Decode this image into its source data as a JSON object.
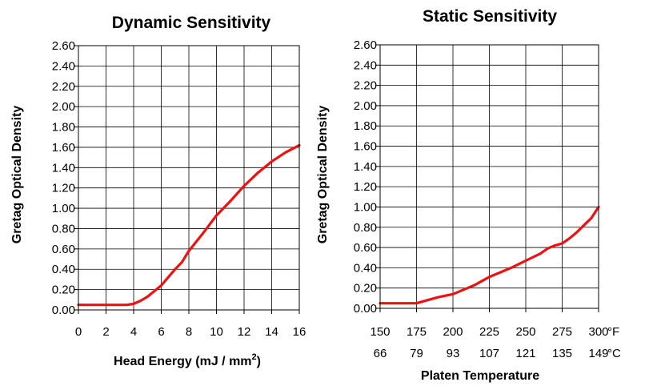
{
  "chart_data": [
    {
      "type": "line",
      "title": "Dynamic Sensitivity",
      "xlabel_main": "Head Energy (mJ / mm",
      "xlabel_sup": "2",
      "xlabel_end": ")",
      "ylabel": "Gretag Optical Density",
      "xlim": [
        0,
        16
      ],
      "ylim": [
        0,
        2.6
      ],
      "grid": true,
      "x_ticks": [
        "0",
        "2",
        "4",
        "6",
        "8",
        "10",
        "12",
        "14",
        "16"
      ],
      "y_ticks": [
        "0.00",
        "0.20",
        "0.40",
        "0.60",
        "0.80",
        "1.00",
        "1.20",
        "1.40",
        "1.60",
        "1.80",
        "2.00",
        "2.20",
        "2.40",
        "2.60"
      ],
      "color": "#ee1111",
      "series": [
        {
          "x": [
            0,
            1,
            2,
            3,
            3.5,
            4,
            4.5,
            5,
            6,
            7,
            7.5,
            8,
            9,
            10,
            11,
            12,
            13,
            14,
            15,
            16
          ],
          "y": [
            0.05,
            0.05,
            0.05,
            0.05,
            0.05,
            0.06,
            0.09,
            0.13,
            0.24,
            0.4,
            0.47,
            0.58,
            0.75,
            0.93,
            1.07,
            1.22,
            1.35,
            1.46,
            1.55,
            1.62
          ]
        }
      ]
    },
    {
      "type": "line",
      "title": "Static Sensitivity",
      "xlabel": "Platen Temperature",
      "ylabel": "Gretag Optical Density",
      "xlim": [
        150,
        300
      ],
      "ylim": [
        0,
        2.6
      ],
      "grid": true,
      "x_ticks": [
        "150",
        "175",
        "200",
        "225",
        "250",
        "275",
        "300"
      ],
      "x_ticks_secondary": [
        "66",
        "79",
        "93",
        "107",
        "121",
        "135",
        "149"
      ],
      "x_unit": "°F",
      "x_unit_secondary": "°C",
      "y_ticks": [
        "0.00",
        "0.20",
        "0.40",
        "0.60",
        "0.80",
        "1.00",
        "1.20",
        "1.40",
        "1.60",
        "1.80",
        "2.00",
        "2.20",
        "2.40",
        "2.60"
      ],
      "color": "#ee1111",
      "series": [
        {
          "x": [
            150,
            160,
            170,
            175,
            180,
            185,
            190,
            200,
            210,
            215,
            220,
            225,
            230,
            240,
            250,
            260,
            265,
            270,
            275,
            280,
            285,
            290,
            295,
            300
          ],
          "y": [
            0.05,
            0.05,
            0.05,
            0.05,
            0.07,
            0.09,
            0.11,
            0.14,
            0.2,
            0.23,
            0.27,
            0.31,
            0.34,
            0.4,
            0.47,
            0.54,
            0.59,
            0.62,
            0.64,
            0.69,
            0.75,
            0.82,
            0.89,
            1.0
          ]
        }
      ]
    }
  ]
}
